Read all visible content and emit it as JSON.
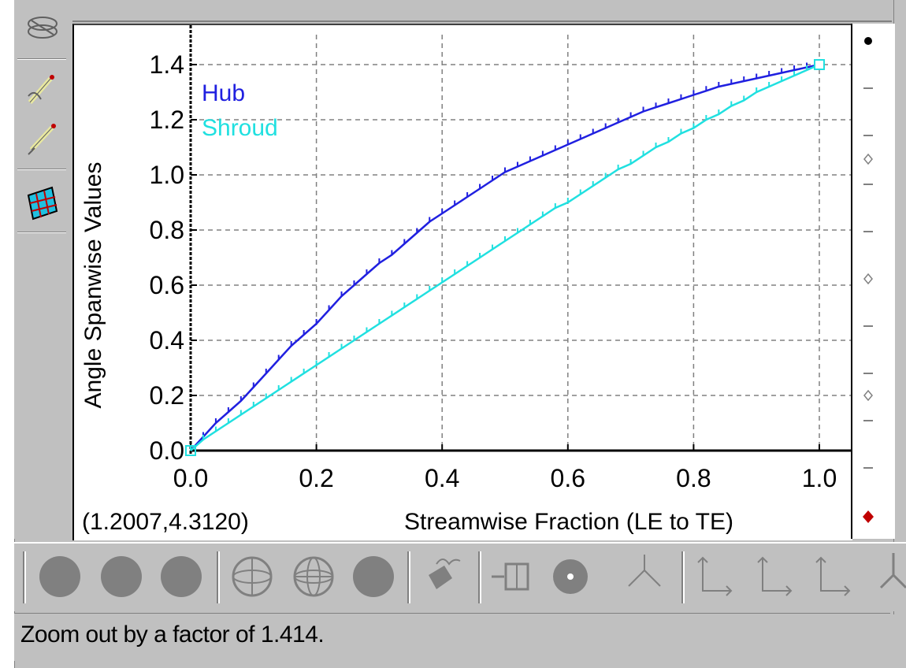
{
  "status": {
    "message": "Zoom out by a factor of 1.414."
  },
  "plot": {
    "cursor_readout": "(1.2007,4.3120)"
  },
  "chart_data": {
    "type": "line",
    "xlabel": "Streamwise Fraction (LE to TE)",
    "ylabel": "Angle Spanwise Values",
    "xlim": [
      0.0,
      1.05
    ],
    "ylim": [
      0.0,
      1.5
    ],
    "x_ticks": [
      "0.0",
      "0.2",
      "0.4",
      "0.6",
      "0.8",
      "1.0"
    ],
    "y_ticks": [
      "0.0",
      "0.2",
      "0.4",
      "0.6",
      "0.8",
      "1.0",
      "1.2",
      "1.4"
    ],
    "x_tick_values": [
      0.0,
      0.2,
      0.4,
      0.6,
      0.8,
      1.0
    ],
    "y_tick_values": [
      0.0,
      0.2,
      0.4,
      0.6,
      0.8,
      1.0,
      1.2,
      1.4
    ],
    "grid": true,
    "legend_position": "top-left",
    "series": [
      {
        "name": "Hub",
        "color": "#2020e0",
        "x": [
          0.0,
          0.02,
          0.04,
          0.06,
          0.08,
          0.1,
          0.12,
          0.14,
          0.16,
          0.18,
          0.2,
          0.22,
          0.24,
          0.26,
          0.28,
          0.3,
          0.32,
          0.34,
          0.36,
          0.38,
          0.4,
          0.42,
          0.44,
          0.46,
          0.48,
          0.5,
          0.52,
          0.54,
          0.56,
          0.58,
          0.6,
          0.62,
          0.64,
          0.66,
          0.68,
          0.7,
          0.72,
          0.74,
          0.76,
          0.78,
          0.8,
          0.82,
          0.84,
          0.86,
          0.88,
          0.9,
          0.92,
          0.94,
          0.96,
          0.98,
          1.0
        ],
        "values": [
          0.0,
          0.05,
          0.1,
          0.14,
          0.18,
          0.23,
          0.28,
          0.33,
          0.38,
          0.42,
          0.46,
          0.51,
          0.56,
          0.6,
          0.64,
          0.68,
          0.71,
          0.75,
          0.79,
          0.83,
          0.86,
          0.89,
          0.92,
          0.95,
          0.98,
          1.01,
          1.03,
          1.05,
          1.07,
          1.09,
          1.11,
          1.13,
          1.15,
          1.17,
          1.19,
          1.21,
          1.23,
          1.245,
          1.26,
          1.275,
          1.29,
          1.305,
          1.32,
          1.33,
          1.34,
          1.35,
          1.36,
          1.37,
          1.38,
          1.39,
          1.4
        ]
      },
      {
        "name": "Shroud",
        "color": "#20e0e0",
        "x": [
          0.0,
          0.02,
          0.04,
          0.06,
          0.08,
          0.1,
          0.12,
          0.14,
          0.16,
          0.18,
          0.2,
          0.22,
          0.24,
          0.26,
          0.28,
          0.3,
          0.32,
          0.34,
          0.36,
          0.38,
          0.4,
          0.42,
          0.44,
          0.46,
          0.48,
          0.5,
          0.52,
          0.54,
          0.56,
          0.58,
          0.6,
          0.62,
          0.64,
          0.66,
          0.68,
          0.7,
          0.72,
          0.74,
          0.76,
          0.78,
          0.8,
          0.82,
          0.84,
          0.86,
          0.88,
          0.9,
          0.92,
          0.94,
          0.96,
          0.98,
          1.0
        ],
        "values": [
          0.0,
          0.04,
          0.07,
          0.1,
          0.13,
          0.16,
          0.19,
          0.22,
          0.25,
          0.28,
          0.31,
          0.34,
          0.37,
          0.4,
          0.43,
          0.46,
          0.49,
          0.52,
          0.55,
          0.58,
          0.61,
          0.64,
          0.67,
          0.7,
          0.73,
          0.76,
          0.79,
          0.82,
          0.85,
          0.88,
          0.9,
          0.93,
          0.96,
          0.99,
          1.02,
          1.04,
          1.07,
          1.1,
          1.12,
          1.15,
          1.17,
          1.2,
          1.22,
          1.25,
          1.27,
          1.3,
          1.32,
          1.34,
          1.36,
          1.38,
          1.4
        ]
      }
    ]
  },
  "colors": {
    "toolbar": "#c0c0c0",
    "plot_bg": "#ffffff",
    "hub": "#2020e0",
    "shroud": "#20e0e0",
    "grid": "#808080"
  }
}
